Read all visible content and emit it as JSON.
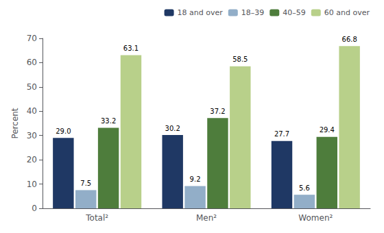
{
  "chart_data": {
    "type": "bar",
    "categories": [
      "Total²",
      "Men²",
      "Women²"
    ],
    "series": [
      {
        "name": "18 and over",
        "color": "#1f3864",
        "values": [
          29.0,
          30.2,
          27.7
        ],
        "value_labels": [
          "29.0",
          "30.2",
          "27.7"
        ]
      },
      {
        "name": "18–39",
        "color": "#92aec8",
        "values": [
          7.5,
          9.2,
          5.6
        ],
        "value_labels": [
          "7.5",
          "9.2",
          "5.6"
        ]
      },
      {
        "name": "40–59",
        "color": "#4e7d3c",
        "values": [
          33.2,
          37.2,
          29.4
        ],
        "value_labels": [
          "33.2",
          "37.2",
          "29.4"
        ]
      },
      {
        "name": "60 and over",
        "color": "#b8d08a",
        "values": [
          63.1,
          58.5,
          66.8
        ],
        "value_labels": [
          "63.1",
          "58.5",
          "66.8"
        ]
      }
    ],
    "ylabel": "Percent",
    "ylim": [
      0,
      70
    ],
    "yticks": [
      0,
      10,
      20,
      30,
      40,
      50,
      60,
      70
    ],
    "grid": false,
    "legend": "upper right",
    "data_labels": true
  }
}
